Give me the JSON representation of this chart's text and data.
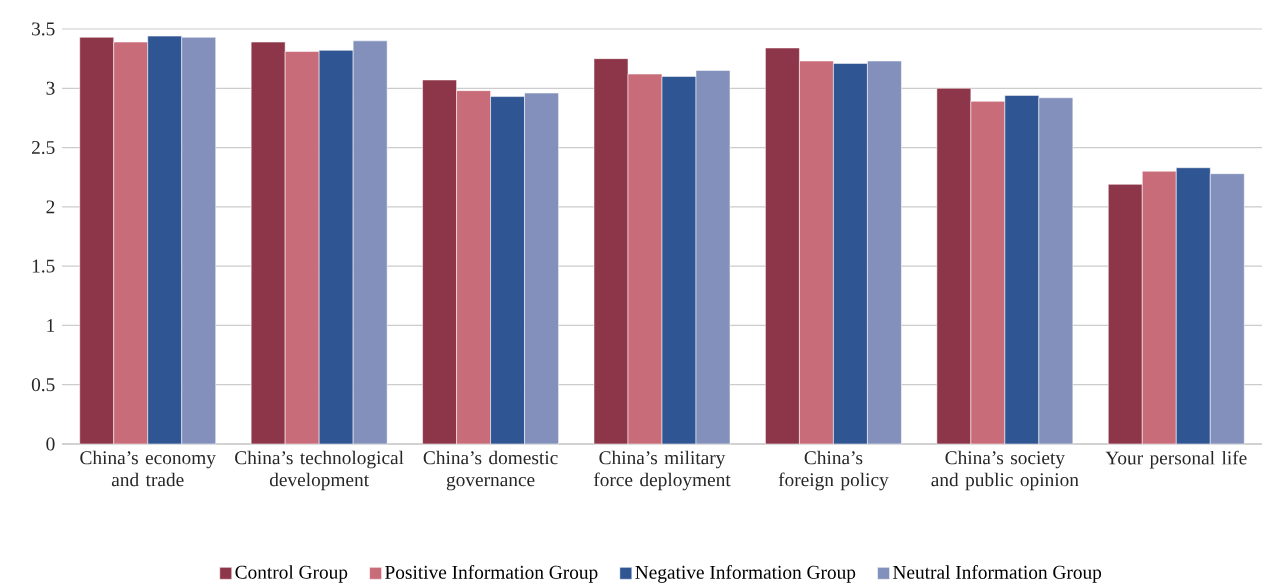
{
  "chart_data": {
    "type": "bar",
    "categories": [
      "China’s economy and trade",
      "China’s technological development",
      "China’s domestic governance",
      "China’s military force deployment",
      "China’s foreign policy",
      "China’s society and public opinion",
      "Your personal life"
    ],
    "series": [
      {
        "name": "Control Group",
        "color": "#8e3649",
        "values": [
          3.43,
          3.39,
          3.07,
          3.25,
          3.34,
          3.0,
          2.19
        ]
      },
      {
        "name": "Positive Information Group",
        "color": "#c96c7a",
        "values": [
          3.39,
          3.31,
          2.98,
          3.12,
          3.23,
          2.89,
          2.3
        ]
      },
      {
        "name": "Negative Information Group",
        "color": "#2f5593",
        "values": [
          3.44,
          3.32,
          2.93,
          3.1,
          3.21,
          2.94,
          2.33
        ]
      },
      {
        "name": "Neutral Information Group",
        "color": "#8290bb",
        "values": [
          3.43,
          3.4,
          2.96,
          3.15,
          3.23,
          2.92,
          2.28
        ]
      }
    ],
    "ylim": [
      0,
      3.5
    ],
    "yticks": [
      0,
      0.5,
      1,
      1.5,
      2,
      2.5,
      3,
      3.5
    ],
    "grid": "y",
    "legend": "bottom"
  }
}
